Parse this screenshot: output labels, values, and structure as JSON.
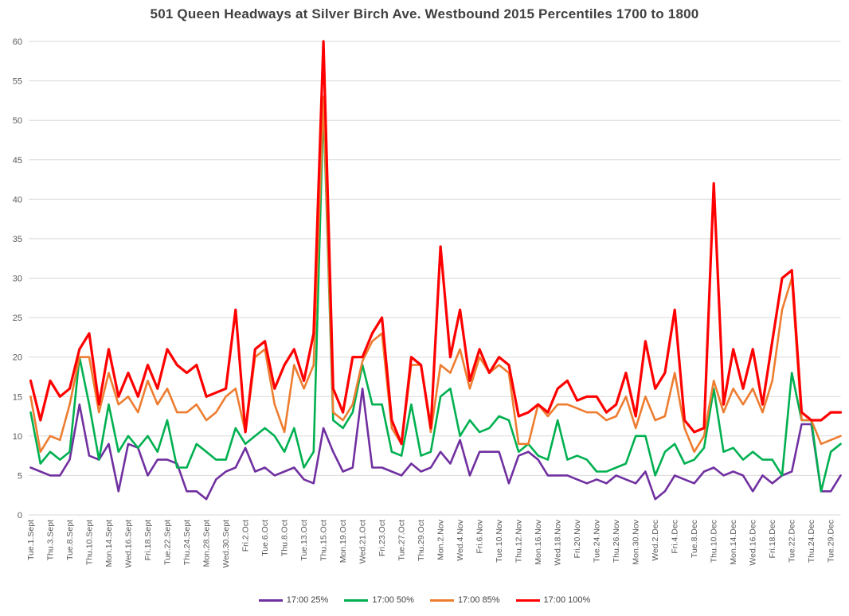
{
  "chart_data": {
    "type": "line",
    "title": "501 Queen Headways at Silver Birch Ave. Westbound 2015 Percentiles 1700 to 1800",
    "xlabel": "",
    "ylabel": "",
    "ylim": [
      0,
      60
    ],
    "ytick_step": 5,
    "grid": "horizontal",
    "legend_position": "bottom",
    "label_every": 2,
    "x_labels": [
      "Tue.1.Sept",
      "Thu.3.Sept",
      "Tue.8.Sept",
      "Thu.10.Sept",
      "Mon.14.Sept",
      "Wed.16.Sept",
      "Fri.18.Sept",
      "Tue.22.Sept",
      "Thu.24.Sept",
      "Mon.28.Sept",
      "Wed.30.Sept",
      "Fri.2.Oct",
      "Tue.6.Oct",
      "Thu.8.Oct",
      "Tue.13.Oct",
      "Thu.15.Oct",
      "Mon.19.Oct",
      "Wed.21.Oct",
      "Fri.23.Oct",
      "Tue.27.Oct",
      "Thu.29.Oct",
      "Mon.2.Nov",
      "Wed.4.Nov",
      "Fri.6.Nov",
      "Tue.10.Nov",
      "Thu.12.Nov",
      "Mon.16.Nov",
      "Wed.18.Nov",
      "Fri.20.Nov",
      "Tue.24.Nov",
      "Thu.26.Nov",
      "Mon.30.Nov",
      "Wed.2.Dec",
      "Fri.4.Dec",
      "Tue.8.Dec",
      "Thu.10.Dec",
      "Mon.14.Dec",
      "Wed.16.Dec",
      "Fri.18.Dec",
      "Tue.22.Dec",
      "Thu.24.Dec",
      "Tue.29.Dec"
    ],
    "series": [
      {
        "name": "17:00 25%",
        "color": "#7030A0",
        "values": [
          6,
          5.5,
          5,
          5,
          7,
          14,
          7.5,
          7,
          9,
          3,
          9,
          8.5,
          5,
          7,
          7,
          6.5,
          3,
          3,
          2,
          4.5,
          5.5,
          6,
          8.5,
          5.5,
          6,
          5,
          5.5,
          6,
          4.5,
          4,
          11,
          8,
          5.5,
          6,
          16,
          6,
          6,
          5.5,
          5,
          6.5,
          5.5,
          6,
          8,
          6.5,
          9.5,
          5,
          8,
          8,
          8,
          4,
          7.5,
          8,
          7,
          5,
          5,
          5,
          4.5,
          4,
          4.5,
          4,
          5,
          4.5,
          4,
          5.5,
          2,
          3,
          5,
          4.5,
          4,
          5.5,
          6,
          5,
          5.5,
          5,
          3,
          5,
          4,
          5,
          5.5,
          11.5,
          11.5,
          3,
          3,
          5
        ]
      },
      {
        "name": "17:00 50%",
        "color": "#00B050",
        "values": [
          13,
          6.5,
          8,
          7,
          8,
          20,
          14,
          7,
          14,
          8,
          10,
          8.5,
          10,
          8,
          12,
          6,
          6,
          9,
          8,
          7,
          7,
          11,
          9,
          10,
          11,
          10,
          8,
          11,
          6,
          8,
          52,
          12,
          11,
          13,
          19,
          14,
          14,
          8,
          7.5,
          14,
          7.5,
          8,
          15,
          16,
          10,
          12,
          10.5,
          11,
          12.5,
          12,
          8,
          9,
          7.5,
          7,
          12,
          7,
          7.5,
          7,
          5.5,
          5.5,
          6,
          6.5,
          10,
          10,
          5,
          8,
          9,
          6.5,
          7,
          8.5,
          16,
          8,
          8.5,
          7,
          8,
          7,
          7,
          5,
          18,
          12,
          12,
          3,
          8,
          9
        ]
      },
      {
        "name": "17:00 85%",
        "color": "#ED7D31",
        "values": [
          15,
          8,
          10,
          9.5,
          14,
          20,
          20,
          13,
          18,
          14,
          15,
          13,
          17,
          14,
          16,
          13,
          13,
          14,
          12,
          13,
          15,
          16,
          10.5,
          20,
          21,
          14,
          10.5,
          19,
          16,
          19,
          53,
          13,
          12,
          14,
          19.5,
          22,
          23,
          11,
          9,
          19,
          19,
          10.5,
          19,
          18,
          21,
          16,
          20,
          18,
          19,
          18,
          9,
          9,
          14,
          12.5,
          14,
          14,
          13.5,
          13,
          13,
          12,
          12.5,
          15,
          11,
          15,
          12,
          12.5,
          18,
          11,
          8,
          10,
          17,
          13,
          16,
          14,
          16,
          13,
          17,
          26,
          30,
          12,
          12,
          9,
          9.5,
          10
        ]
      },
      {
        "name": "17:00 100%",
        "color": "#FF0000",
        "values": [
          17,
          12,
          17,
          15,
          16,
          21,
          23,
          14,
          21,
          15,
          18,
          15,
          19,
          16,
          21,
          19,
          18,
          19,
          15,
          15.5,
          16,
          26,
          10.5,
          21,
          22,
          16,
          19,
          21,
          17,
          23,
          60,
          16,
          13,
          20,
          20,
          23,
          25,
          12,
          9,
          20,
          19,
          11,
          34,
          20,
          26,
          17,
          21,
          18,
          20,
          19,
          12.5,
          13,
          14,
          13,
          16,
          17,
          14.5,
          15,
          15,
          13,
          14,
          18,
          12.5,
          22,
          16,
          18,
          26,
          12,
          10.5,
          11,
          42,
          14,
          21,
          16,
          21,
          14,
          22,
          30,
          31,
          13,
          12,
          12,
          13,
          13
        ]
      }
    ],
    "axis_text_color": "#595959",
    "gridline_color": "#d9d9d9"
  }
}
